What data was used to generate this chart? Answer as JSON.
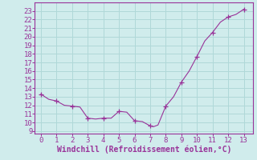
{
  "x": [
    0,
    0.5,
    1,
    1.5,
    2,
    2.5,
    3,
    3.5,
    4,
    4.5,
    5,
    5.5,
    6,
    6.5,
    7,
    7.2,
    7.5,
    8,
    8.5,
    9,
    9.5,
    10,
    10.5,
    11,
    11.5,
    12,
    12.5,
    13
  ],
  "y": [
    13.3,
    12.7,
    12.5,
    12.0,
    11.9,
    11.8,
    10.5,
    10.4,
    10.5,
    10.5,
    11.3,
    11.2,
    10.2,
    10.1,
    9.6,
    9.5,
    9.7,
    11.9,
    13.0,
    14.7,
    16.0,
    17.7,
    19.5,
    20.5,
    21.7,
    22.3,
    22.6,
    23.2
  ],
  "marker_x": [
    0,
    1,
    2,
    3,
    4,
    5,
    6,
    7,
    8,
    9,
    10,
    11,
    12,
    13
  ],
  "marker_y": [
    13.3,
    12.5,
    11.9,
    10.5,
    10.5,
    11.3,
    10.2,
    9.6,
    11.9,
    14.7,
    17.7,
    20.5,
    22.3,
    23.2
  ],
  "line_color": "#993399",
  "marker_color": "#993399",
  "bg_color": "#d0ecec",
  "grid_color": "#b0d8d8",
  "xlabel": "Windchill (Refroidissement éolien,°C)",
  "xlabel_color": "#993399",
  "ylabel_ticks": [
    9,
    10,
    11,
    12,
    13,
    14,
    15,
    16,
    17,
    18,
    19,
    20,
    21,
    22,
    23
  ],
  "xlim": [
    -0.4,
    13.6
  ],
  "ylim": [
    8.7,
    24.0
  ],
  "xticks": [
    0,
    1,
    2,
    3,
    4,
    5,
    6,
    7,
    8,
    9,
    10,
    11,
    12,
    13
  ],
  "tick_fontsize": 6.5,
  "xlabel_fontsize": 7.0
}
